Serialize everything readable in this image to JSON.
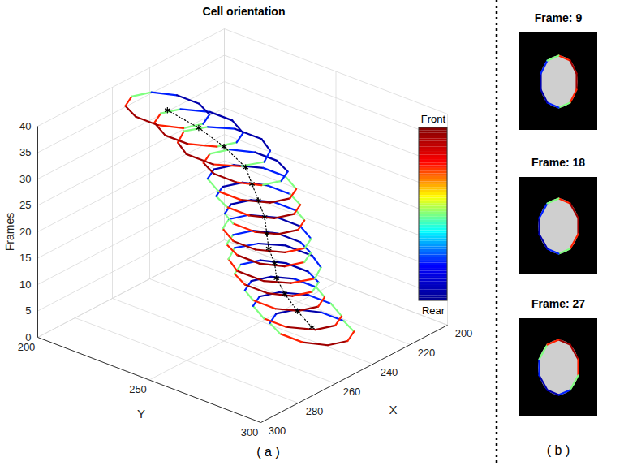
{
  "chart_data": [
    {
      "type": "contour3d",
      "title": "Cell orientation",
      "panel_label": "( a )",
      "xlabel": "X",
      "ylabel": "Y",
      "zlabel": "Frames",
      "xlim": [
        200,
        300
      ],
      "xticks": [
        200,
        220,
        240,
        260,
        280,
        300
      ],
      "ylim": [
        200,
        300
      ],
      "yticks": [
        200,
        250,
        300
      ],
      "zlim": [
        0,
        40
      ],
      "zticks": [
        0,
        5,
        10,
        15,
        20,
        25,
        30,
        35,
        40
      ],
      "grid": true,
      "colorbar": {
        "range": [
          0,
          1
        ],
        "labels": [
          {
            "value": 1,
            "label": "Front"
          },
          {
            "value": 0,
            "label": "Rear"
          }
        ],
        "colors": [
          "#00008f",
          "#0000ff",
          "#00ffff",
          "#ffff00",
          "#ff0000",
          "#800000"
        ]
      },
      "track": {
        "marker": "asterisk",
        "line_style": "dotted",
        "color": "#000000"
      },
      "contours": [
        {
          "frame": 0,
          "centroid": [
            232,
            266
          ],
          "x": [
            232,
            239,
            243,
            243,
            239,
            232,
            225,
            221,
            221,
            225
          ],
          "y": [
            282,
            279,
            271,
            261,
            253,
            250,
            253,
            261,
            271,
            279
          ],
          "orientation": [
            0.9,
            1,
            0.9,
            0.65,
            0.35,
            0.1,
            0,
            0.1,
            0.35,
            0.65
          ]
        },
        {
          "frame": 3,
          "centroid": [
            235,
            262
          ],
          "x": [
            235,
            242,
            247,
            247,
            242,
            235,
            228,
            223,
            223,
            228
          ],
          "y": [
            279,
            276,
            267,
            257,
            248,
            245,
            248,
            257,
            267,
            276
          ],
          "orientation": [
            0.9,
            1,
            0.9,
            0.65,
            0.35,
            0.1,
            0,
            0.1,
            0.35,
            0.65
          ]
        },
        {
          "frame": 6,
          "centroid": [
            237,
            258
          ],
          "x": [
            237,
            244,
            248,
            248,
            244,
            237,
            230,
            226,
            226,
            230
          ],
          "y": [
            273,
            270,
            263,
            253,
            246,
            243,
            246,
            253,
            263,
            270
          ],
          "orientation": [
            0.9,
            1,
            0.9,
            0.65,
            0.35,
            0.1,
            0,
            0.1,
            0.35,
            0.65
          ]
        },
        {
          "frame": 9,
          "centroid": [
            239,
            256
          ],
          "x": [
            239,
            246,
            250,
            250,
            246,
            239,
            232,
            228,
            228,
            232
          ],
          "y": [
            272,
            269,
            261,
            251,
            243,
            240,
            243,
            251,
            261,
            269
          ],
          "orientation": [
            0.65,
            0.9,
            1,
            0.9,
            0.65,
            0.35,
            0.1,
            0,
            0.1,
            0.35
          ]
        },
        {
          "frame": 12,
          "centroid": [
            240,
            256
          ],
          "x": [
            240,
            248,
            253,
            253,
            248,
            240,
            232,
            227,
            227,
            232
          ],
          "y": [
            274,
            270,
            262,
            250,
            242,
            238,
            242,
            250,
            262,
            270
          ],
          "orientation": [
            0.65,
            0.9,
            1,
            0.9,
            0.65,
            0.35,
            0.1,
            0,
            0.1,
            0.35
          ]
        },
        {
          "frame": 15,
          "centroid": [
            242,
            255
          ],
          "x": [
            242,
            249,
            253,
            253,
            249,
            242,
            235,
            231,
            231,
            235
          ],
          "y": [
            271,
            268,
            260,
            250,
            242,
            239,
            242,
            250,
            260,
            268
          ],
          "orientation": [
            0.65,
            0.9,
            1,
            0.9,
            0.65,
            0.35,
            0.1,
            0,
            0.1,
            0.35
          ]
        },
        {
          "frame": 18,
          "centroid": [
            243,
            255
          ],
          "x": [
            243,
            250,
            255,
            255,
            250,
            243,
            236,
            231,
            231,
            236
          ],
          "y": [
            272,
            269,
            260,
            250,
            241,
            238,
            241,
            250,
            260,
            269
          ],
          "orientation": [
            0.65,
            0.9,
            1,
            0.9,
            0.65,
            0.35,
            0.1,
            0,
            0.1,
            0.35
          ]
        },
        {
          "frame": 21,
          "centroid": [
            243,
            254
          ],
          "x": [
            243,
            250,
            254,
            254,
            250,
            243,
            236,
            232,
            232,
            236
          ],
          "y": [
            269,
            266,
            259,
            249,
            242,
            239,
            242,
            249,
            259,
            266
          ],
          "orientation": [
            0.9,
            1,
            0.9,
            0.65,
            0.35,
            0.1,
            0,
            0.1,
            0.35,
            0.65
          ]
        },
        {
          "frame": 24,
          "centroid": [
            244,
            252
          ],
          "x": [
            244,
            251,
            255,
            255,
            251,
            244,
            237,
            233,
            233,
            237
          ],
          "y": [
            268,
            265,
            257,
            247,
            239,
            236,
            239,
            247,
            257,
            265
          ],
          "orientation": [
            0.9,
            1,
            0.9,
            0.65,
            0.35,
            0.1,
            0,
            0.1,
            0.35,
            0.65
          ]
        },
        {
          "frame": 27,
          "centroid": [
            245,
            250
          ],
          "x": [
            245,
            252,
            257,
            257,
            252,
            245,
            238,
            233,
            233,
            238
          ],
          "y": [
            267,
            264,
            255,
            245,
            236,
            233,
            236,
            245,
            255,
            264
          ],
          "orientation": [
            0.9,
            1,
            0.9,
            0.65,
            0.35,
            0.1,
            0,
            0.1,
            0.35,
            0.65
          ]
        },
        {
          "frame": 30,
          "centroid": [
            246,
            248
          ],
          "x": [
            246,
            253,
            257,
            257,
            253,
            246,
            239,
            235,
            235,
            239
          ],
          "y": [
            264,
            261,
            253,
            243,
            235,
            232,
            235,
            243,
            253,
            261
          ],
          "orientation": [
            0.35,
            0.65,
            0.9,
            1,
            0.9,
            0.65,
            0.35,
            0.1,
            0,
            0.1
          ]
        },
        {
          "frame": 33,
          "centroid": [
            248,
            240
          ],
          "x": [
            248,
            256,
            261,
            261,
            256,
            248,
            240,
            235,
            235,
            240
          ],
          "y": [
            258,
            254,
            246,
            234,
            226,
            222,
            226,
            234,
            246,
            254
          ],
          "orientation": [
            0.35,
            0.65,
            0.9,
            1,
            0.9,
            0.65,
            0.35,
            0.1,
            0,
            0.1
          ]
        },
        {
          "frame": 36,
          "centroid": [
            252,
            232
          ],
          "x": [
            252,
            259,
            264,
            264,
            259,
            252,
            245,
            240,
            240,
            245
          ],
          "y": [
            249,
            246,
            237,
            227,
            218,
            215,
            218,
            227,
            237,
            246
          ],
          "orientation": [
            0.35,
            0.65,
            0.9,
            1,
            0.9,
            0.65,
            0.35,
            0.1,
            0,
            0.1
          ]
        },
        {
          "frame": 39,
          "centroid": [
            258,
            223
          ],
          "x": [
            258,
            265,
            269,
            269,
            265,
            258,
            251,
            247,
            247,
            251
          ],
          "y": [
            239,
            236,
            228,
            218,
            210,
            207,
            210,
            218,
            228,
            236
          ],
          "orientation": [
            0.35,
            0.65,
            0.9,
            1,
            0.9,
            0.65,
            0.35,
            0.1,
            0,
            0.1
          ]
        }
      ]
    },
    {
      "type": "image_contour",
      "panel_label": "( b )",
      "panels": [
        {
          "title": "Frame: 9",
          "frame": 9
        },
        {
          "title": "Frame: 18",
          "frame": 18
        },
        {
          "title": "Frame: 27",
          "frame": 27
        }
      ]
    }
  ]
}
